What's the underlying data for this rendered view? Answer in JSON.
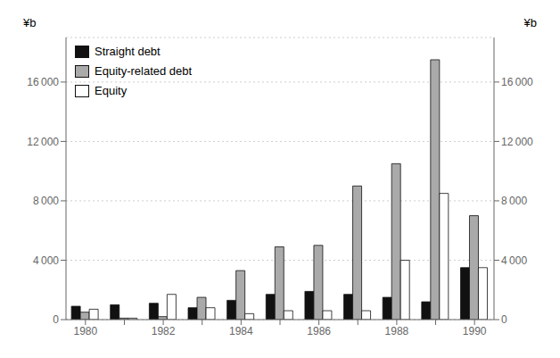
{
  "chart_data": {
    "type": "bar",
    "categories": [
      "1980",
      null,
      "1982",
      null,
      "1984",
      null,
      "1986",
      null,
      "1988",
      null,
      "1990"
    ],
    "series": [
      {
        "name": "Straight debt",
        "color": "#111111",
        "values": [
          900,
          1000,
          1100,
          800,
          1300,
          1700,
          1900,
          1700,
          1500,
          1200,
          3500
        ]
      },
      {
        "name": "Equity-related debt",
        "color": "#aaaaaa",
        "values": [
          500,
          100,
          200,
          1500,
          3300,
          4900,
          5000,
          9000,
          10500,
          17500,
          7000
        ]
      },
      {
        "name": "Equity",
        "color": "#ffffff",
        "values": [
          700,
          100,
          1700,
          800,
          400,
          600,
          600,
          600,
          4000,
          8500,
          3500
        ]
      }
    ],
    "ylim": [
      0,
      19000
    ],
    "yticks": [
      0,
      {
        "value": 4000,
        "label": "4 000"
      },
      {
        "value": 8000,
        "label": "8 000"
      },
      {
        "value": 12000,
        "label": "12 000"
      },
      {
        "value": 16000,
        "label": "16 000"
      }
    ],
    "y2lim": [
      0,
      19000
    ],
    "y2ticks": [
      0,
      {
        "value": 4000,
        "label": "4 000"
      },
      {
        "value": 8000,
        "label": "8 000"
      },
      {
        "value": 12000,
        "label": "12 000"
      },
      {
        "value": 16000,
        "label": "16 000"
      }
    ],
    "ylabel": "¥b",
    "y2label": "¥b",
    "grid": true,
    "legend": "upper left"
  }
}
